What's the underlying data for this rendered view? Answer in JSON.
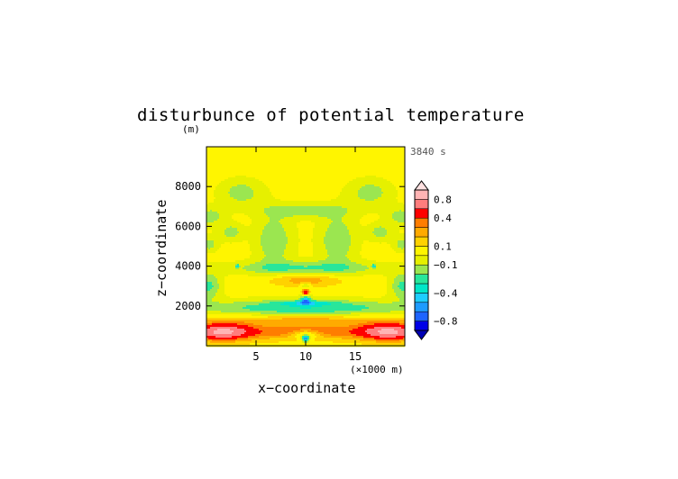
{
  "chart_data": {
    "type": "heatmap",
    "title": "disturbunce of potential temperature",
    "y_unit": "(m)",
    "time_label": "3840 s",
    "xlabel": "x−coordinate",
    "ylabel": "z−coordinate",
    "x_unit": "(×1000 m)",
    "xlim": [
      0,
      20
    ],
    "ylim": [
      0,
      10000
    ],
    "x_ticks": [
      {
        "value": 5,
        "label": "5"
      },
      {
        "value": 10,
        "label": "10"
      },
      {
        "value": 15,
        "label": "15"
      }
    ],
    "y_ticks": [
      {
        "value": 2000,
        "label": "2000"
      },
      {
        "value": 4000,
        "label": "4000"
      },
      {
        "value": 6000,
        "label": "6000"
      },
      {
        "value": 8000,
        "label": "8000"
      }
    ],
    "colorbar": {
      "levels": [
        -1.0,
        -0.8,
        -0.6,
        -0.5,
        -0.4,
        -0.3,
        -0.2,
        -0.1,
        0,
        0.1,
        0.2,
        0.3,
        0.4,
        0.6,
        0.8,
        1.0
      ],
      "colors": [
        "#0000e6",
        "#1e64ff",
        "#1e9bff",
        "#1ecdff",
        "#00e6c8",
        "#28e69b",
        "#9be650",
        "#e6f000",
        "#fff500",
        "#ffd200",
        "#ffaa00",
        "#ff7d00",
        "#ff0000",
        "#ff7d7d",
        "#ffb4b4"
      ],
      "labels": [
        {
          "value": -0.8,
          "label": "−0.8"
        },
        {
          "value": -0.4,
          "label": "−0.4"
        },
        {
          "value": -0.1,
          "label": "−0.1"
        },
        {
          "value": 0.1,
          "label": "0.1"
        },
        {
          "value": 0.4,
          "label": "0.4"
        },
        {
          "value": 0.8,
          "label": "0.8"
        }
      ]
    }
  }
}
